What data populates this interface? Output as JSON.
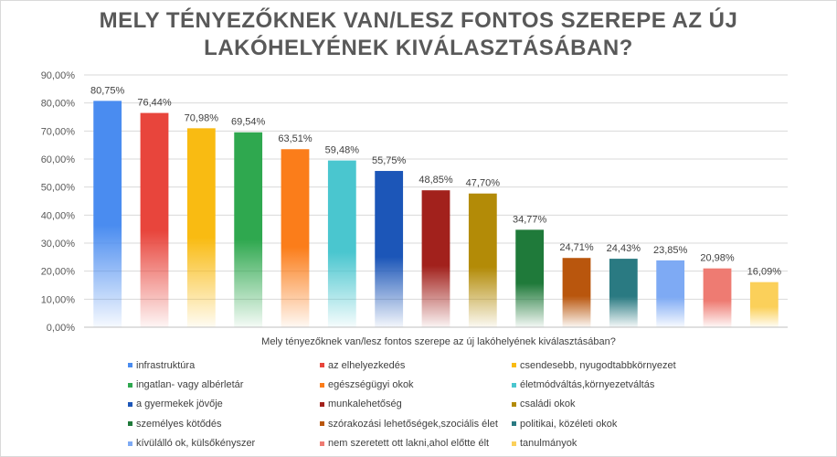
{
  "chart_data": {
    "type": "bar",
    "title_lines": [
      "MELY TÉNYEZŐKNEK VAN/LESZ FONTOS SZEREPE AZ ÚJ",
      "LAKÓHELYÉNEK KIVÁLASZTÁSÁBAN?"
    ],
    "xlabel": "Mely tényezőknek van/lesz fontos szerepe az új lakóhelyének kiválasztásában?",
    "ylabel": "",
    "ylim": [
      0,
      90
    ],
    "yticks": [
      "0,00%",
      "10,00%",
      "20,00%",
      "30,00%",
      "40,00%",
      "50,00%",
      "60,00%",
      "70,00%",
      "80,00%",
      "90,00%"
    ],
    "grid": true,
    "legend_position": "bottom",
    "series": [
      {
        "name": "infrastruktúra",
        "value": 80.75,
        "label": "80,75%",
        "color": "#4a8cf0"
      },
      {
        "name": "az elhelyezkedés",
        "value": 76.44,
        "label": "76,44%",
        "color": "#e8453c"
      },
      {
        "name": "csendesebb, nyugodtabbkörnyezet",
        "value": 70.98,
        "label": "70,98%",
        "color": "#f9bb12"
      },
      {
        "name": "ingatlan- vagy albérletár",
        "value": 69.54,
        "label": "69,54%",
        "color": "#2fa84f"
      },
      {
        "name": "egészségügyi okok",
        "value": 63.51,
        "label": "63,51%",
        "color": "#fb7d1a"
      },
      {
        "name": "életmódváltás,környezetváltás",
        "value": 59.48,
        "label": "59,48%",
        "color": "#4ac6cf"
      },
      {
        "name": "a gyermekek jövője",
        "value": 55.75,
        "label": "55,75%",
        "color": "#1c56b8"
      },
      {
        "name": "munkalehetőség",
        "value": 48.85,
        "label": "48,85%",
        "color": "#a2211c"
      },
      {
        "name": "családi okok",
        "value": 47.7,
        "label": "47,70%",
        "color": "#b38b07"
      },
      {
        "name": "személyes kötődés",
        "value": 34.77,
        "label": "34,77%",
        "color": "#1f7a3a"
      },
      {
        "name": "szórakozási lehetőségek,szociális élet",
        "value": 24.71,
        "label": "24,71%",
        "color": "#b9560d"
      },
      {
        "name": "politikai, közéleti okok",
        "value": 24.43,
        "label": "24,43%",
        "color": "#2a7a82"
      },
      {
        "name": "kívülálló ok, külsőkényszer",
        "value": 23.85,
        "label": "23,85%",
        "color": "#7eaaf4"
      },
      {
        "name": "nem szeretett ott lakni,ahol előtte élt",
        "value": 20.98,
        "label": "20,98%",
        "color": "#ee7b72"
      },
      {
        "name": "tanulmányok",
        "value": 16.09,
        "label": "16,09%",
        "color": "#fbd05a"
      }
    ]
  }
}
